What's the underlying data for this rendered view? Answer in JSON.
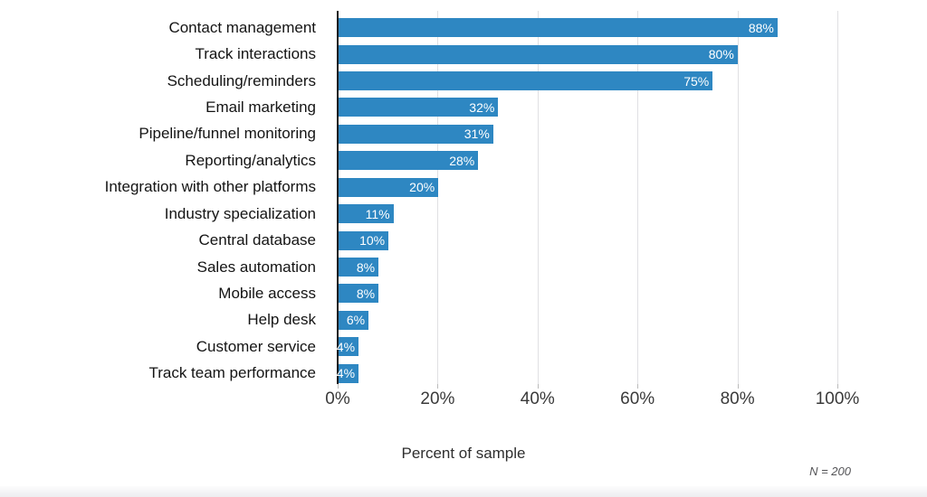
{
  "chart_data": {
    "type": "bar",
    "orientation": "horizontal",
    "categories": [
      "Contact management",
      "Track interactions",
      "Scheduling/reminders",
      "Email marketing",
      "Pipeline/funnel monitoring",
      "Reporting/analytics",
      "Integration with other platforms",
      "Industry specialization",
      "Central database",
      "Sales automation",
      "Mobile access",
      "Help desk",
      "Customer service",
      "Track team performance"
    ],
    "values": [
      88,
      80,
      75,
      32,
      31,
      28,
      20,
      11,
      10,
      8,
      8,
      6,
      4,
      4
    ],
    "value_labels": [
      "88%",
      "80%",
      "75%",
      "32%",
      "31%",
      "28%",
      "20%",
      "11%",
      "10%",
      "8%",
      "8%",
      "6%",
      "4%",
      "4%"
    ],
    "xlabel": "Percent of sample",
    "xlim": [
      0,
      100
    ],
    "xticks": [
      {
        "label": "0%",
        "value": 0
      },
      {
        "label": "20%",
        "value": 20
      },
      {
        "label": "40%",
        "value": 40
      },
      {
        "label": "60%",
        "value": 60
      },
      {
        "label": "80%",
        "value": 80
      },
      {
        "label": "100%",
        "value": 100
      }
    ],
    "grid": true,
    "annotation": "N = 200",
    "colors": {
      "bar": "#2E87C2",
      "gridline": "#e0e0e3",
      "axis_line": "#1c1c1c",
      "value_label_text": "#ffffff"
    }
  }
}
